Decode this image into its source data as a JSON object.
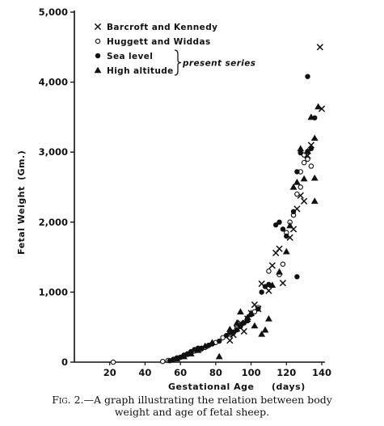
{
  "chart_data": {
    "type": "scatter",
    "xlabel": "Gestational Age",
    "xunit": "(days)",
    "ylabel": "Fetal Weight",
    "yunit": "(Gm.)",
    "xlim": [
      0,
      140
    ],
    "ylim": [
      0,
      5000
    ],
    "x_ticks": [
      "20",
      "40",
      "60",
      "80",
      "100",
      "120",
      "140"
    ],
    "y_ticks": [
      "0",
      "1,000",
      "2,000",
      "3,000",
      "4,000",
      "5,000"
    ],
    "legend": {
      "placement": "top-left",
      "entries": [
        {
          "label": "Barcroft and Kennedy",
          "marker": "x"
        },
        {
          "label": "Huggett and Widdas",
          "marker": "o"
        },
        {
          "label": "Sea level",
          "marker": "filled-circle"
        },
        {
          "label": "High altitude",
          "marker": "filled-triangle"
        }
      ],
      "bracket_label": "present series"
    },
    "series": [
      {
        "name": "Barcroft and Kennedy",
        "marker": "x",
        "points": [
          [
            88,
            310
          ],
          [
            90,
            390
          ],
          [
            92,
            480
          ],
          [
            94,
            560
          ],
          [
            96,
            440
          ],
          [
            98,
            620
          ],
          [
            100,
            700
          ],
          [
            102,
            820
          ],
          [
            104,
            760
          ],
          [
            106,
            1120
          ],
          [
            110,
            1020
          ],
          [
            112,
            1380
          ],
          [
            114,
            1560
          ],
          [
            116,
            1620
          ],
          [
            118,
            1130
          ],
          [
            122,
            1780
          ],
          [
            124,
            1900
          ],
          [
            126,
            2190
          ],
          [
            128,
            2380
          ],
          [
            130,
            2300
          ],
          [
            132,
            2950
          ],
          [
            134,
            3100
          ],
          [
            140,
            3620
          ],
          [
            139,
            4500
          ]
        ]
      },
      {
        "name": "Huggett and Widdas",
        "marker": "o",
        "points": [
          [
            22,
            0
          ],
          [
            50,
            10
          ],
          [
            53,
            25
          ],
          [
            56,
            40
          ],
          [
            58,
            60
          ],
          [
            60,
            70
          ],
          [
            62,
            100
          ],
          [
            64,
            110
          ],
          [
            66,
            130
          ],
          [
            68,
            160
          ],
          [
            70,
            170
          ],
          [
            72,
            190
          ],
          [
            74,
            210
          ],
          [
            76,
            240
          ],
          [
            78,
            260
          ],
          [
            80,
            280
          ],
          [
            84,
            350
          ],
          [
            88,
            400
          ],
          [
            90,
            430
          ],
          [
            92,
            480
          ],
          [
            94,
            520
          ],
          [
            96,
            560
          ],
          [
            98,
            620
          ],
          [
            100,
            680
          ],
          [
            102,
            720
          ],
          [
            104,
            780
          ],
          [
            110,
            1300
          ],
          [
            116,
            1250
          ],
          [
            118,
            1400
          ],
          [
            120,
            1850
          ],
          [
            122,
            2000
          ],
          [
            124,
            2100
          ],
          [
            126,
            2400
          ],
          [
            128,
            2500
          ],
          [
            128,
            2720
          ],
          [
            130,
            2850
          ],
          [
            130,
            2960
          ],
          [
            132,
            2900
          ],
          [
            132,
            3010
          ],
          [
            134,
            2800
          ]
        ]
      },
      {
        "name": "Sea level",
        "marker": "filled-circle",
        "points": [
          [
            54,
            20
          ],
          [
            56,
            30
          ],
          [
            58,
            50
          ],
          [
            60,
            70
          ],
          [
            62,
            90
          ],
          [
            64,
            120
          ],
          [
            66,
            150
          ],
          [
            68,
            180
          ],
          [
            70,
            200
          ],
          [
            72,
            200
          ],
          [
            76,
            240
          ],
          [
            78,
            260
          ],
          [
            82,
            300
          ],
          [
            86,
            380
          ],
          [
            88,
            420
          ],
          [
            90,
            420
          ],
          [
            92,
            460
          ],
          [
            94,
            510
          ],
          [
            96,
            560
          ],
          [
            98,
            590
          ],
          [
            100,
            680
          ],
          [
            104,
            760
          ],
          [
            106,
            1000
          ],
          [
            108,
            1080
          ],
          [
            110,
            1110
          ],
          [
            114,
            1960
          ],
          [
            116,
            2000
          ],
          [
            118,
            1900
          ],
          [
            120,
            1800
          ],
          [
            124,
            2150
          ],
          [
            126,
            1220
          ],
          [
            126,
            2720
          ],
          [
            128,
            2990
          ],
          [
            132,
            4080
          ],
          [
            134,
            3050
          ],
          [
            136,
            3490
          ]
        ]
      },
      {
        "name": "High altitude",
        "marker": "filled-triangle",
        "points": [
          [
            58,
            50
          ],
          [
            62,
            80
          ],
          [
            66,
            120
          ],
          [
            70,
            170
          ],
          [
            74,
            230
          ],
          [
            78,
            280
          ],
          [
            82,
            80
          ],
          [
            88,
            470
          ],
          [
            92,
            560
          ],
          [
            94,
            720
          ],
          [
            98,
            640
          ],
          [
            100,
            700
          ],
          [
            102,
            520
          ],
          [
            106,
            400
          ],
          [
            108,
            460
          ],
          [
            110,
            620
          ],
          [
            112,
            1100
          ],
          [
            116,
            1290
          ],
          [
            120,
            1580
          ],
          [
            122,
            1950
          ],
          [
            124,
            2500
          ],
          [
            126,
            2570
          ],
          [
            128,
            3050
          ],
          [
            130,
            2620
          ],
          [
            132,
            3010
          ],
          [
            134,
            3500
          ],
          [
            136,
            3200
          ],
          [
            136,
            2630
          ],
          [
            136,
            2300
          ],
          [
            138,
            3650
          ]
        ]
      }
    ]
  },
  "caption": {
    "fig_label": "Fig. 2.",
    "line1": "—A graph illustrating the relation between body",
    "line2": "weight and age of fetal sheep."
  }
}
